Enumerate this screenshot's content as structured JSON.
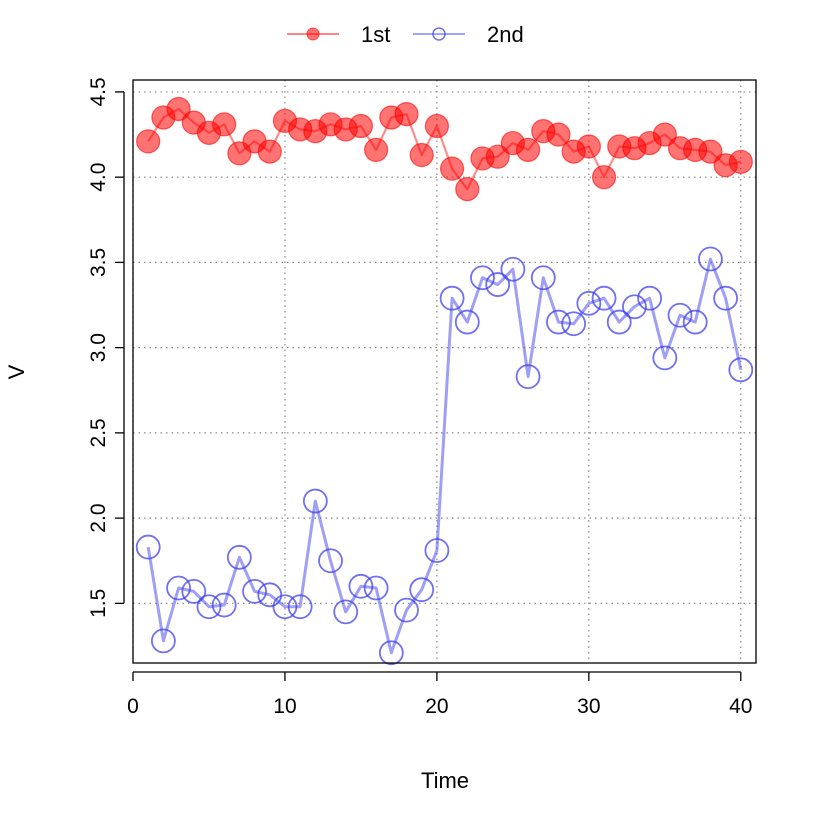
{
  "chart_data": {
    "type": "line",
    "xlabel": "Time",
    "ylabel": "V",
    "xlim": [
      0,
      41
    ],
    "ylim": [
      1.15,
      4.57
    ],
    "xticks": [
      0,
      10,
      20,
      30,
      40
    ],
    "yticks": [
      1.5,
      2.0,
      2.5,
      3.0,
      3.5,
      4.0,
      4.5
    ],
    "grid": true,
    "legend_position": "top-center",
    "x": [
      1,
      2,
      3,
      4,
      5,
      6,
      7,
      8,
      9,
      10,
      11,
      12,
      13,
      14,
      15,
      16,
      17,
      18,
      19,
      20,
      21,
      22,
      23,
      24,
      25,
      26,
      27,
      28,
      29,
      30,
      31,
      32,
      33,
      34,
      35,
      36,
      37,
      38,
      39,
      40
    ],
    "series": [
      {
        "name": "1st",
        "color": "#ff0000",
        "marker": "filled-circle",
        "values": [
          4.21,
          4.35,
          4.4,
          4.32,
          4.26,
          4.31,
          4.14,
          4.21,
          4.15,
          4.33,
          4.28,
          4.27,
          4.31,
          4.28,
          4.3,
          4.16,
          4.35,
          4.37,
          4.13,
          4.3,
          4.05,
          3.93,
          4.11,
          4.12,
          4.2,
          4.16,
          4.27,
          4.25,
          4.15,
          4.18,
          4.0,
          4.18,
          4.17,
          4.2,
          4.25,
          4.17,
          4.16,
          4.15,
          4.07,
          4.09
        ]
      },
      {
        "name": "2nd",
        "color": "#4040ee",
        "marker": "open-circle",
        "values": [
          1.83,
          1.28,
          1.59,
          1.57,
          1.48,
          1.49,
          1.77,
          1.57,
          1.55,
          1.48,
          1.48,
          2.1,
          1.75,
          1.45,
          1.6,
          1.59,
          1.21,
          1.46,
          1.58,
          1.81,
          3.29,
          3.15,
          3.41,
          3.37,
          3.46,
          2.83,
          3.41,
          3.15,
          3.14,
          3.26,
          3.29,
          3.15,
          3.24,
          3.29,
          2.94,
          3.19,
          3.15,
          3.52,
          3.29,
          2.87
        ]
      }
    ]
  }
}
